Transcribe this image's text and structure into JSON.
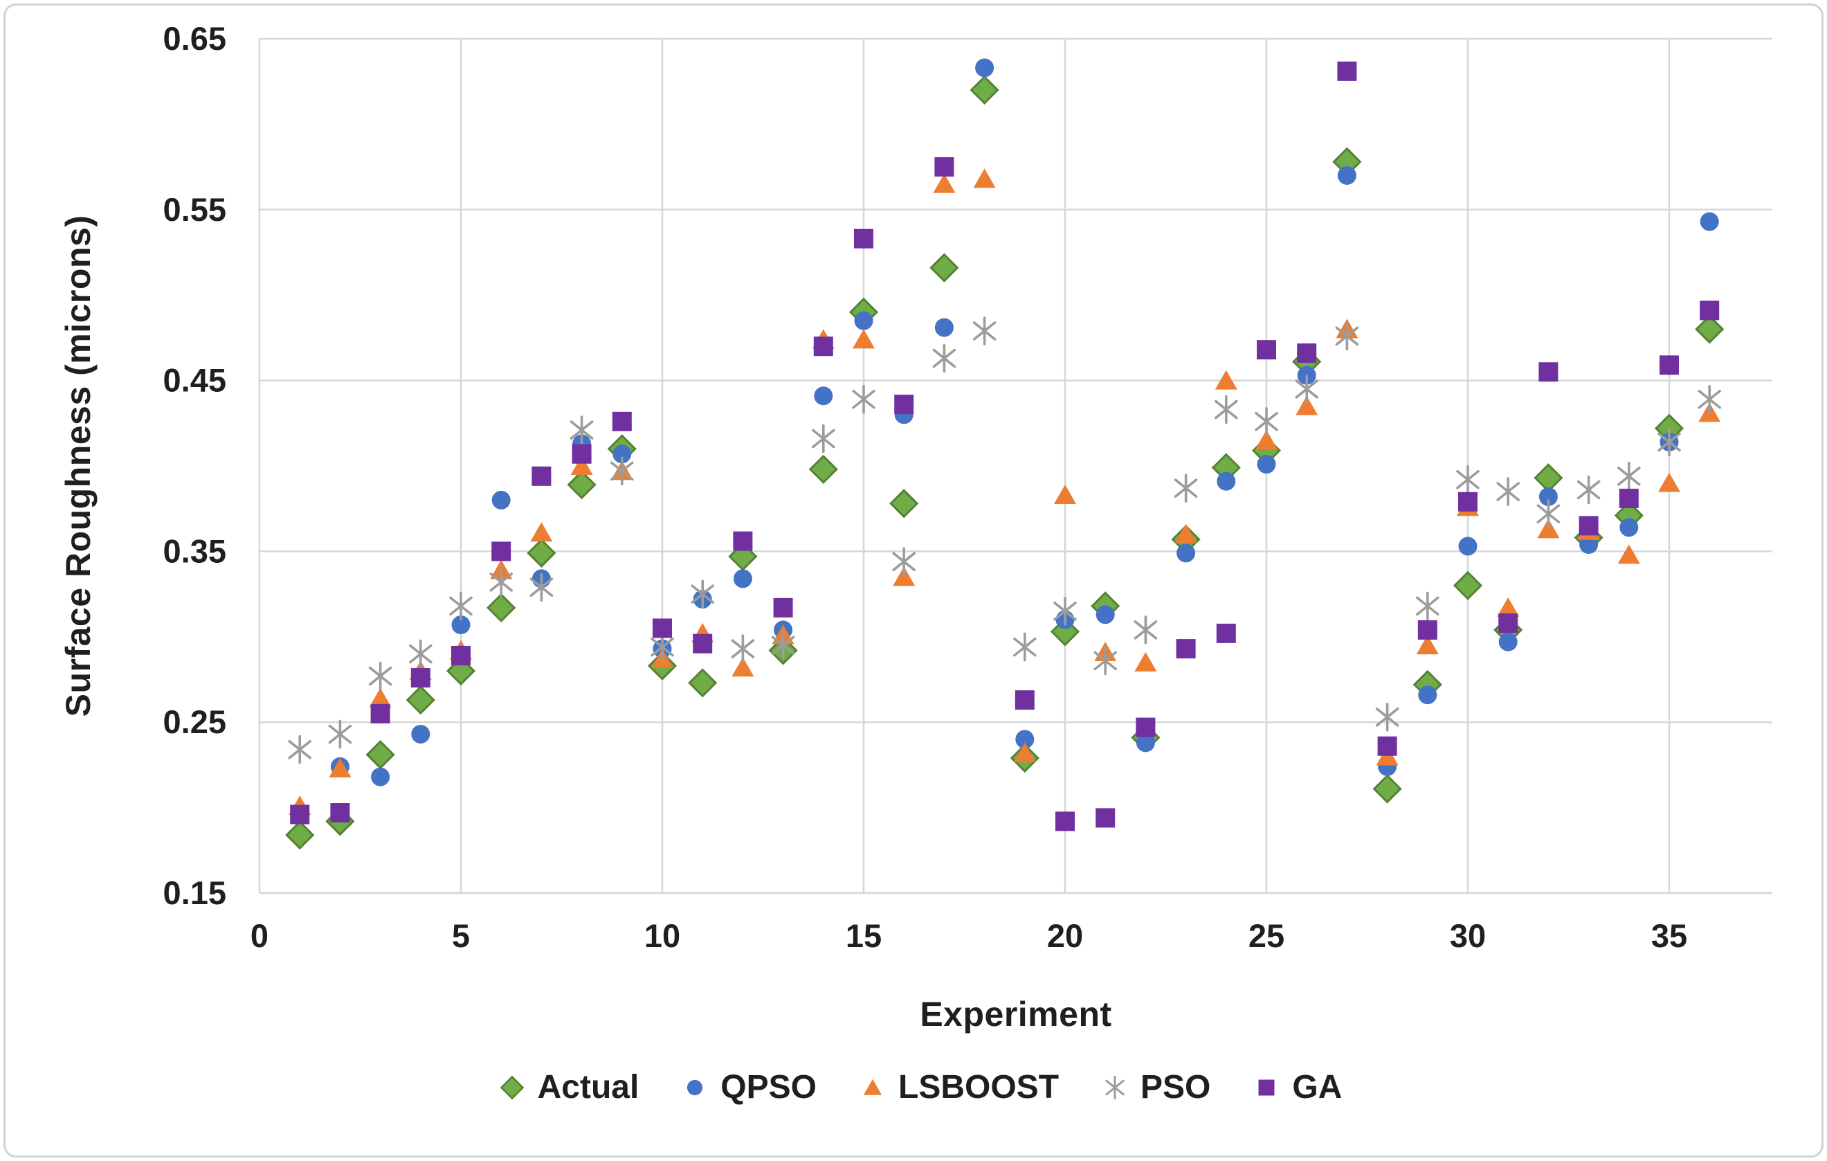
{
  "chart_data": {
    "type": "scatter",
    "title": "",
    "xlabel": "Experiment",
    "ylabel": "Surface Roughness (microns)",
    "xlim": [
      0,
      37.56
    ],
    "ylim": [
      0.15,
      0.65
    ],
    "x_ticks": [
      0,
      5,
      10,
      15,
      20,
      25,
      30,
      35
    ],
    "y_ticks": [
      0.15,
      0.25,
      0.35,
      0.45,
      0.55,
      0.65
    ],
    "grid": true,
    "legend_position": "bottom",
    "x": [
      1,
      2,
      3,
      4,
      5,
      6,
      7,
      8,
      9,
      10,
      11,
      12,
      13,
      14,
      15,
      16,
      17,
      18,
      19,
      20,
      21,
      22,
      23,
      24,
      25,
      26,
      27,
      28,
      29,
      30,
      31,
      32,
      33,
      34,
      35,
      36
    ],
    "series": [
      {
        "name": "Actual",
        "marker": "diamond",
        "color": "#70AD47",
        "outline": "#548235",
        "values": [
          0.184,
          0.192,
          0.231,
          0.263,
          0.28,
          0.317,
          0.349,
          0.389,
          0.41,
          0.283,
          0.273,
          0.347,
          0.292,
          0.398,
          0.49,
          0.378,
          0.516,
          0.62,
          0.229,
          0.303,
          0.318,
          0.241,
          0.357,
          0.399,
          0.409,
          0.461,
          0.578,
          0.211,
          0.272,
          0.33,
          0.304,
          0.393,
          0.358,
          0.371,
          0.422,
          0.48
        ]
      },
      {
        "name": "QPSO",
        "marker": "circle",
        "color": "#4472C4",
        "outline": "#4472C4",
        "values": [
          0.196,
          0.224,
          0.218,
          0.243,
          0.307,
          0.38,
          0.334,
          0.413,
          0.407,
          0.293,
          0.322,
          0.334,
          0.304,
          0.441,
          0.485,
          0.43,
          0.481,
          0.633,
          0.24,
          0.31,
          0.313,
          0.238,
          0.349,
          0.391,
          0.401,
          0.453,
          0.57,
          0.224,
          0.266,
          0.353,
          0.297,
          0.382,
          0.354,
          0.364,
          0.414,
          0.543
        ]
      },
      {
        "name": "LSBOOST",
        "marker": "triangle",
        "color": "#ED7D31",
        "outline": "#ED7D31",
        "values": [
          0.201,
          0.223,
          0.264,
          0.28,
          0.292,
          0.339,
          0.361,
          0.4,
          0.397,
          0.287,
          0.302,
          0.282,
          0.301,
          0.474,
          0.474,
          0.335,
          0.565,
          0.568,
          0.232,
          0.383,
          0.291,
          0.285,
          0.36,
          0.45,
          0.415,
          0.435,
          0.48,
          0.23,
          0.295,
          0.376,
          0.317,
          0.363,
          0.362,
          0.348,
          0.39,
          0.431
        ]
      },
      {
        "name": "PSO",
        "marker": "asterisk",
        "color": "#9c9c9c",
        "outline": "#9c9c9c",
        "values": [
          0.234,
          0.243,
          0.277,
          0.29,
          0.318,
          0.332,
          0.329,
          0.421,
          0.397,
          0.294,
          0.325,
          0.293,
          0.295,
          0.416,
          0.439,
          0.344,
          0.463,
          0.479,
          0.294,
          0.315,
          0.286,
          0.304,
          0.387,
          0.433,
          0.426,
          0.445,
          0.476,
          0.253,
          0.318,
          0.392,
          0.385,
          0.372,
          0.386,
          0.394,
          0.414,
          0.439
        ]
      },
      {
        "name": "GA",
        "marker": "square",
        "color": "#7030A0",
        "outline": "#7030A0",
        "values": [
          0.196,
          0.197,
          0.255,
          0.276,
          0.289,
          0.35,
          0.394,
          0.407,
          0.426,
          0.305,
          0.296,
          0.356,
          0.317,
          0.47,
          0.533,
          0.436,
          0.575,
          null,
          0.263,
          0.192,
          0.194,
          0.247,
          0.293,
          0.302,
          0.468,
          0.466,
          0.631,
          0.236,
          0.304,
          0.379,
          0.308,
          0.455,
          0.365,
          0.381,
          0.459,
          0.491
        ]
      }
    ]
  }
}
